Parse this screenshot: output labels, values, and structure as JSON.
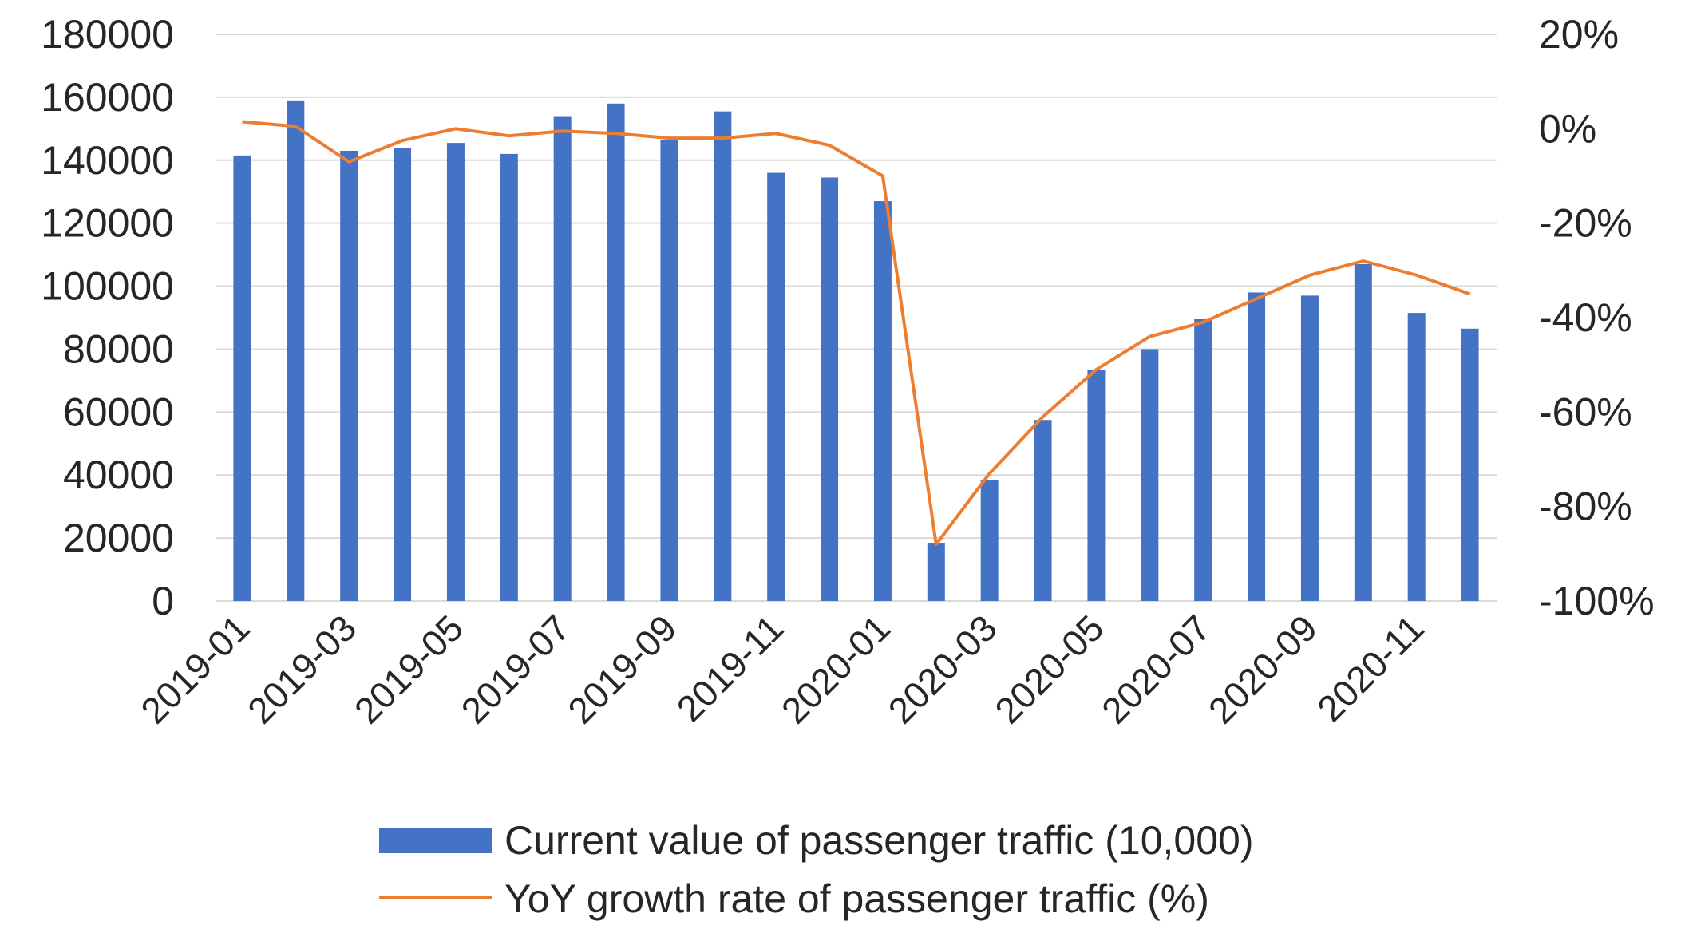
{
  "chart_data": {
    "type": "bar",
    "categories": [
      "2019-01",
      "2019-02",
      "2019-03",
      "2019-04",
      "2019-05",
      "2019-06",
      "2019-07",
      "2019-08",
      "2019-09",
      "2019-10",
      "2019-11",
      "2019-12",
      "2020-01",
      "2020-02",
      "2020-03",
      "2020-04",
      "2020-05",
      "2020-06",
      "2020-07",
      "2020-08",
      "2020-09",
      "2020-10",
      "2020-11",
      "2020-12"
    ],
    "x_tick_labels": [
      "2019-01",
      "2019-03",
      "2019-05",
      "2019-07",
      "2019-09",
      "2019-11",
      "2020-01",
      "2020-03",
      "2020-05",
      "2020-07",
      "2020-09",
      "2020-11"
    ],
    "series": [
      {
        "name": "Current value of passenger traffic (10,000)",
        "type": "bar",
        "axis": "left",
        "values": [
          141500,
          159000,
          143000,
          144000,
          145500,
          142000,
          154000,
          158000,
          146500,
          155500,
          136000,
          134500,
          127000,
          18500,
          38500,
          57500,
          73500,
          80000,
          89500,
          98000,
          97000,
          107000,
          91500,
          86500
        ]
      },
      {
        "name": "YoY growth rate of passenger traffic (%)",
        "type": "line",
        "axis": "right",
        "values": [
          1.5,
          0.5,
          -7,
          -2.5,
          0,
          -1.5,
          -0.5,
          -1,
          -2,
          -2,
          -1,
          -3.5,
          -10,
          -88,
          -73,
          -61,
          -51,
          -44,
          -41,
          -36,
          -31,
          -28,
          -31,
          -35
        ]
      }
    ],
    "y_left": {
      "ylim": [
        0,
        180000
      ],
      "ticks": [
        "0",
        "20000",
        "40000",
        "60000",
        "80000",
        "100000",
        "120000",
        "140000",
        "160000",
        "180000"
      ]
    },
    "y_right": {
      "ylim": [
        -100,
        20
      ],
      "ticks": [
        "-100%",
        "-80%",
        "-60%",
        "-40%",
        "-20%",
        "0%",
        "20%"
      ]
    },
    "grid": true,
    "legend": "bottom",
    "colors": {
      "bar": "#4472C4",
      "line": "#ED7D31",
      "grid": "#d9d9d9",
      "text": "#262626"
    }
  }
}
